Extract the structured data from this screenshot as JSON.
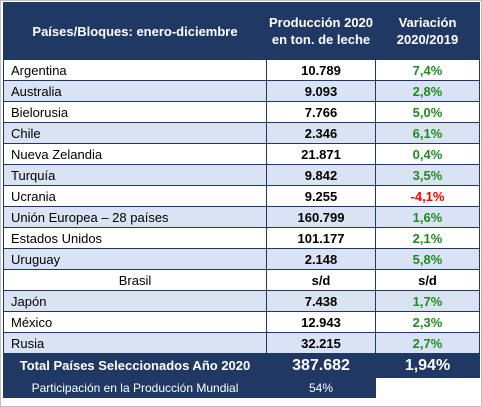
{
  "header": {
    "col1": "Países/Bloques: enero-diciembre",
    "col2_line1": "Producción 2020",
    "col2_line2": "en ton. de leche",
    "col3_line1": "Variación",
    "col3_line2": "2020/2019"
  },
  "rows": [
    {
      "name": "Argentina",
      "prod": "10.789",
      "var": "7,4%",
      "tone": "pos",
      "center": false
    },
    {
      "name": "Australia",
      "prod": "9.093",
      "var": "2,8%",
      "tone": "pos",
      "center": false
    },
    {
      "name": "Bielorusia",
      "prod": "7.766",
      "var": "5,0%",
      "tone": "pos",
      "center": false
    },
    {
      "name": "Chile",
      "prod": "2.346",
      "var": "6,1%",
      "tone": "pos",
      "center": false
    },
    {
      "name": "Nueva Zelandia",
      "prod": "21.871",
      "var": "0,4%",
      "tone": "pos",
      "center": false
    },
    {
      "name": "Turquía",
      "prod": "9.842",
      "var": "3,5%",
      "tone": "pos",
      "center": false
    },
    {
      "name": "Ucrania",
      "prod": "9.255",
      "var": "-4,1%",
      "tone": "neg",
      "center": false
    },
    {
      "name": "Unión Europea – 28 países",
      "prod": "160.799",
      "var": "1,6%",
      "tone": "pos",
      "center": false
    },
    {
      "name": "Estados Unidos",
      "prod": "101.177",
      "var": "2,1%",
      "tone": "pos",
      "center": false
    },
    {
      "name": "Uruguay",
      "prod": "2.148",
      "var": "5,8%",
      "tone": "pos",
      "center": false
    },
    {
      "name": "Brasil",
      "prod": "s/d",
      "var": "s/d",
      "tone": "neutral",
      "center": true
    },
    {
      "name": "Japón",
      "prod": "7.438",
      "var": "1,7%",
      "tone": "pos",
      "center": false
    },
    {
      "name": "México",
      "prod": "12.943",
      "var": "2,3%",
      "tone": "pos",
      "center": false
    },
    {
      "name": "Rusia",
      "prod": "32.215",
      "var": "2,7%",
      "tone": "pos",
      "center": false
    }
  ],
  "total": {
    "label": "Total Países Seleccionados Año 2020",
    "prod": "387.682",
    "var": "1,94%"
  },
  "share": {
    "label": "Participación en la Producción Mundial",
    "value": "54%"
  },
  "colors": {
    "header_bg": "#1f3864",
    "stripe": "#dae3f3",
    "positive": "#1e8c1e",
    "negative": "#ff0000"
  }
}
